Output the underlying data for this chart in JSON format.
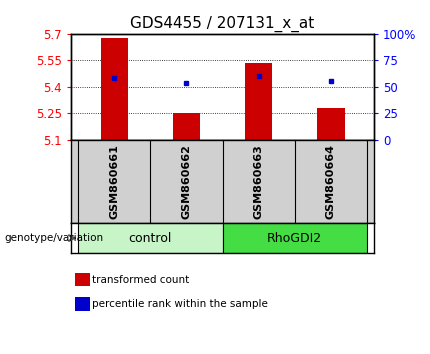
{
  "title": "GDS4455 / 207131_x_at",
  "samples": [
    "GSM860661",
    "GSM860662",
    "GSM860663",
    "GSM860664"
  ],
  "red_values": [
    5.675,
    5.252,
    5.535,
    5.282
  ],
  "blue_values": [
    5.452,
    5.422,
    5.462,
    5.432
  ],
  "ylim": [
    5.1,
    5.7
  ],
  "yticks": [
    5.1,
    5.25,
    5.4,
    5.55,
    5.7
  ],
  "ytick_labels": [
    "5.1",
    "5.25",
    "5.4",
    "5.55",
    "5.7"
  ],
  "right_yticks_pct": [
    0,
    25,
    50,
    75,
    100
  ],
  "right_ytick_positions": [
    5.1,
    5.25,
    5.4,
    5.55,
    5.7
  ],
  "groups": [
    {
      "name": "control",
      "samples": [
        0,
        1
      ],
      "color": "#c8f5c8"
    },
    {
      "name": "RhoGDI2",
      "samples": [
        2,
        3
      ],
      "color": "#44dd44"
    }
  ],
  "bar_color": "#cc0000",
  "dot_color": "#0000cc",
  "bar_width": 0.38,
  "background_color": "#ffffff",
  "plot_bg_color": "#ffffff",
  "label_area_color": "#d0d0d0",
  "genotype_label": "genotype/variation",
  "legend_red": "transformed count",
  "legend_blue": "percentile rank within the sample",
  "title_fontsize": 11,
  "tick_fontsize": 8.5,
  "sample_fontsize": 8,
  "group_fontsize": 9
}
